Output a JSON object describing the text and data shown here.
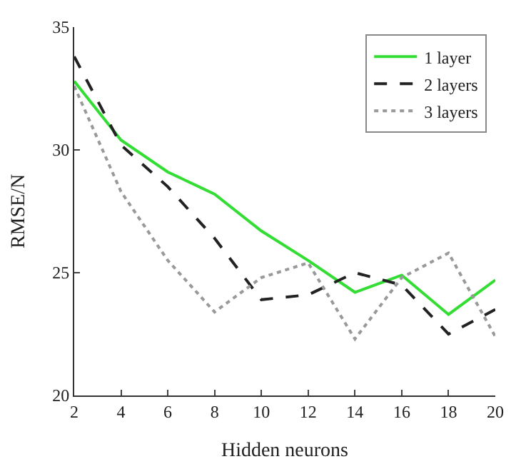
{
  "chart_data": {
    "type": "line",
    "xlabel": "Hidden neurons",
    "ylabel": "RMSE/N",
    "x": [
      2,
      4,
      6,
      8,
      10,
      12,
      14,
      16,
      18,
      20
    ],
    "series": [
      {
        "name": "1 layer",
        "color": "#33dd33",
        "line_style": "solid",
        "values": [
          32.8,
          30.4,
          29.1,
          28.2,
          26.7,
          25.5,
          24.2,
          24.9,
          23.3,
          24.7
        ]
      },
      {
        "name": "2 layers",
        "color": "#222222",
        "line_style": "dashed",
        "values": [
          33.8,
          30.2,
          28.5,
          26.4,
          23.9,
          24.1,
          25.0,
          24.5,
          22.5,
          23.5
        ]
      },
      {
        "name": "3 layers",
        "color": "#999999",
        "line_style": "dotted",
        "values": [
          32.6,
          28.3,
          25.5,
          23.4,
          24.8,
          25.4,
          22.3,
          24.8,
          25.8,
          22.4
        ]
      }
    ],
    "xlim": [
      2,
      20
    ],
    "xticks": [
      2,
      4,
      6,
      8,
      10,
      12,
      14,
      16,
      18,
      20
    ],
    "ylim": [
      20,
      35
    ],
    "yticks": [
      20,
      25,
      30,
      35
    ],
    "legend": "top right",
    "marker": "none"
  }
}
